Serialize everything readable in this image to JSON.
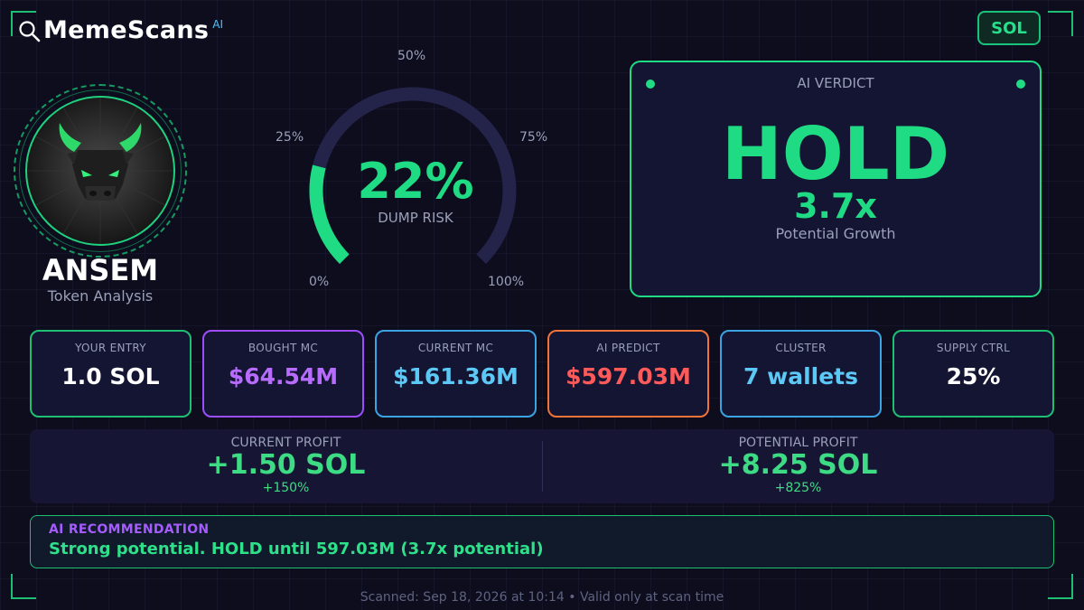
{
  "brand": {
    "name": "MemeScans",
    "badge": "AI",
    "icon": "search-icon"
  },
  "chain": {
    "label": "SOL"
  },
  "token": {
    "name": "ANSEM",
    "subtitle": "Token Analysis",
    "avatar": "bull-head-icon"
  },
  "gauge": {
    "value": 0.22,
    "value_text": "22%",
    "caption": "DUMP RISK",
    "ticks": {
      "t0": "0%",
      "t25": "25%",
      "t50": "50%",
      "t75": "75%",
      "t100": "100%"
    },
    "colors": {
      "fill": "#1fdc84",
      "track": "#24234a"
    }
  },
  "verdict": {
    "header": "AI VERDICT",
    "action": "HOLD",
    "multiplier": "3.7x",
    "subtitle": "Potential Growth"
  },
  "stats": [
    {
      "label": "YOUR ENTRY",
      "value": "1.0 SOL",
      "color": "#ffffff",
      "border": "#1fbf73"
    },
    {
      "label": "BOUGHT MC",
      "value": "$64.54M",
      "color": "#b86cff",
      "border": "#9b4dff"
    },
    {
      "label": "CURRENT MC",
      "value": "$161.36M",
      "color": "#5bc8f5",
      "border": "#3ba3e0"
    },
    {
      "label": "AI PREDICT",
      "value": "$597.03M",
      "color": "#ff5a5a",
      "border": "#f0733a"
    },
    {
      "label": "CLUSTER",
      "value": "7 wallets",
      "color": "#5bc8f5",
      "border": "#3ba3e0"
    },
    {
      "label": "SUPPLY CTRL",
      "value": "25%",
      "color": "#ffffff",
      "border": "#1fbf73"
    }
  ],
  "profits": {
    "current": {
      "label": "CURRENT PROFIT",
      "value": "+1.50 SOL",
      "percent": "+150%"
    },
    "potential": {
      "label": "POTENTIAL PROFIT",
      "value": "+8.25 SOL",
      "percent": "+825%"
    }
  },
  "recommendation": {
    "title": "AI RECOMMENDATION",
    "text": "Strong potential. HOLD until 597.03M (3.7x potential)"
  },
  "footer": {
    "text": "Scanned: Sep 18, 2026 at 10:14  •  Valid only at scan time"
  }
}
